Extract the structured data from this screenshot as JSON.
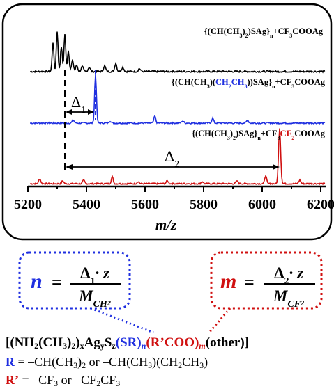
{
  "colors": {
    "black_trace": "#000000",
    "blue": "#1f2fe0",
    "red": "#d01010"
  },
  "spectra": {
    "axis_title": "m/z",
    "x_ticks": [
      "5200",
      "5400",
      "5600",
      "5800",
      "6000",
      "6200"
    ],
    "traces": [
      {
        "label_main": "{(CH(CH",
        "label_sub1": "3",
        "label_mid": ")",
        "label_sub2": "2",
        "label_end": ")SAg}",
        "label_sub3": "n",
        "label_tail": "+CF",
        "label_sub4": "3",
        "label_tail2": "COOAg"
      },
      {
        "label_a": "{(CH(CH",
        "label_b": "3",
        "label_c": ")(",
        "label_d": "CH",
        "label_e": "2",
        "label_f": "CH",
        "label_g": "3",
        "label_h": "))SAg}",
        "label_i": "n",
        "label_j": "+CF",
        "label_k": "3",
        "label_l": "COOAg"
      },
      {
        "label_a": "{(CH(CH",
        "label_b": "3",
        "label_c": ")",
        "label_d": "2",
        "label_e": ")SAg}",
        "label_f": "n",
        "label_g": "+CF",
        "label_h": "3",
        "label_i": "CF",
        "label_j": "2",
        "label_k": "COOAg"
      }
    ],
    "delta1": "Δ",
    "delta1_sub": "1",
    "delta2": "Δ",
    "delta2_sub": "2"
  },
  "equations": {
    "n_var": "n",
    "m_var": "m",
    "equals": "=",
    "numer_n": "Δ",
    "numer_n_sub": "1",
    "numer_m": "Δ",
    "numer_m_sub": "2",
    "dot_z": "· z",
    "M": "M",
    "denom_n_sub": "CH",
    "denom_n_subsub": "2",
    "denom_m_sub": "CF",
    "denom_m_subsub": "2"
  },
  "formula": {
    "f1": "[(NH",
    "f2": "2",
    "f3": "(CH",
    "f4": "3",
    "f5": ")",
    "f6": "2",
    "f7": ")",
    "f8": "x",
    "f9": "Ag",
    "f10": "y",
    "f11": "S",
    "f12": "z",
    "f13": "(SR)",
    "f14": "n",
    "f15": "(R’COO)",
    "f16": "m",
    "f17": "(other)]",
    "r_label": "R",
    "r_text": " = –CH(CH",
    "r_s1": "3",
    "r_t2": ")",
    "r_s2": "2",
    "r_t3": "  or  –CH(CH",
    "r_s3": "3",
    "r_t4": ")(CH",
    "r_s4": "2",
    "r_t5": "CH",
    "r_s5": "3",
    "r_t6": ")",
    "rp_label": "R’",
    "rp_text": " = –CF",
    "rp_s1": "3",
    "rp_t2": "  or  –CF",
    "rp_s2": "2",
    "rp_t3": "CF",
    "rp_s3": "3"
  }
}
